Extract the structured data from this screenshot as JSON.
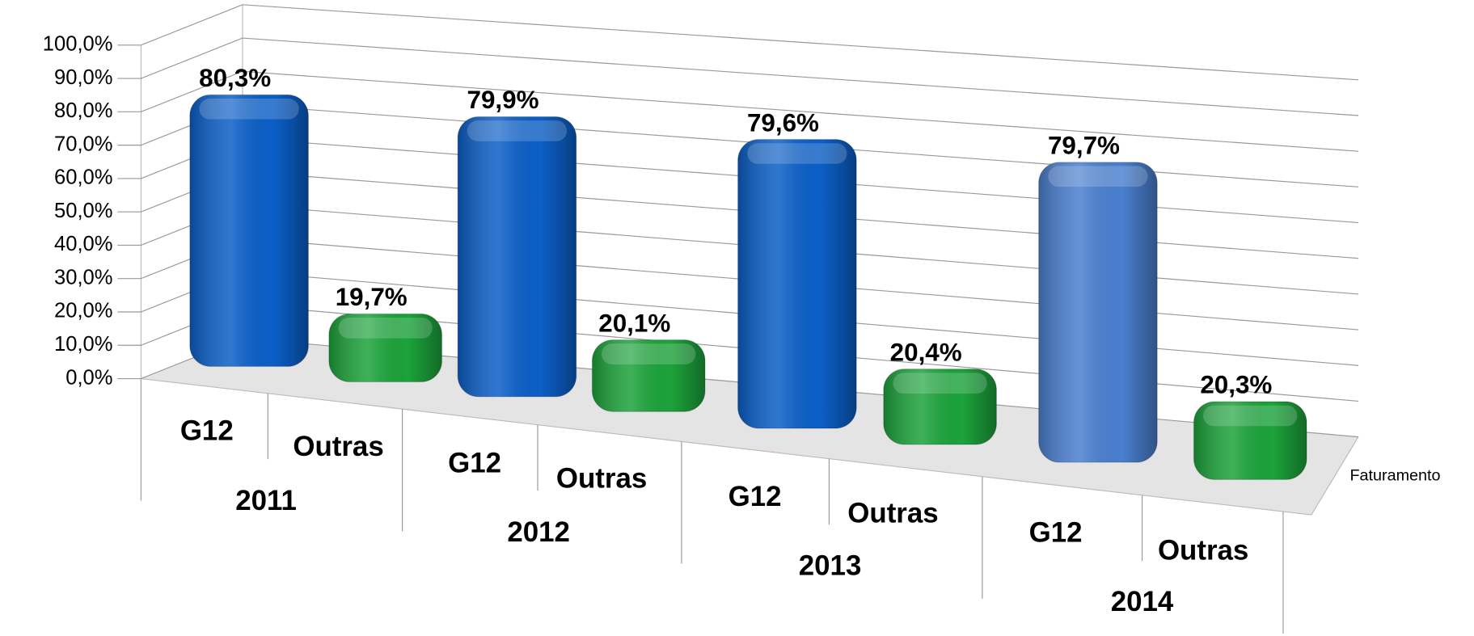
{
  "chart_data": {
    "type": "bar3d",
    "categories": [
      "G12",
      "Outras",
      "G12",
      "Outras",
      "G12",
      "Outras",
      "G12",
      "Outras"
    ],
    "groups": [
      "2011",
      "2012",
      "2013",
      "2014"
    ],
    "series": [
      {
        "name": "Faturamento",
        "values": [
          80.3,
          19.7,
          79.9,
          20.1,
          79.6,
          20.4,
          79.7,
          20.3
        ],
        "value_labels": [
          "80,3%",
          "19,7%",
          "79,9%",
          "20,1%",
          "79,6%",
          "20,4%",
          "79,7%",
          "20,3%"
        ],
        "colors": [
          "#0b5fc8",
          "#1ca33b",
          "#0b5fc8",
          "#1ca33b",
          "#0b5fc8",
          "#1ca33b",
          "#4a7fd0",
          "#1ca33b"
        ]
      }
    ],
    "ylim": [
      0,
      100
    ],
    "yticks": [
      {
        "value": 0,
        "label": "0,0%"
      },
      {
        "value": 10,
        "label": "10,0%"
      },
      {
        "value": 20,
        "label": "20,0%"
      },
      {
        "value": 30,
        "label": "30,0%"
      },
      {
        "value": 40,
        "label": "40,0%"
      },
      {
        "value": 50,
        "label": "50,0%"
      },
      {
        "value": 60,
        "label": "60,0%"
      },
      {
        "value": 70,
        "label": "70,0%"
      },
      {
        "value": 80,
        "label": "80,0%"
      },
      {
        "value": 90,
        "label": "90,0%"
      },
      {
        "value": 100,
        "label": "100,0%"
      }
    ],
    "grid": true
  }
}
